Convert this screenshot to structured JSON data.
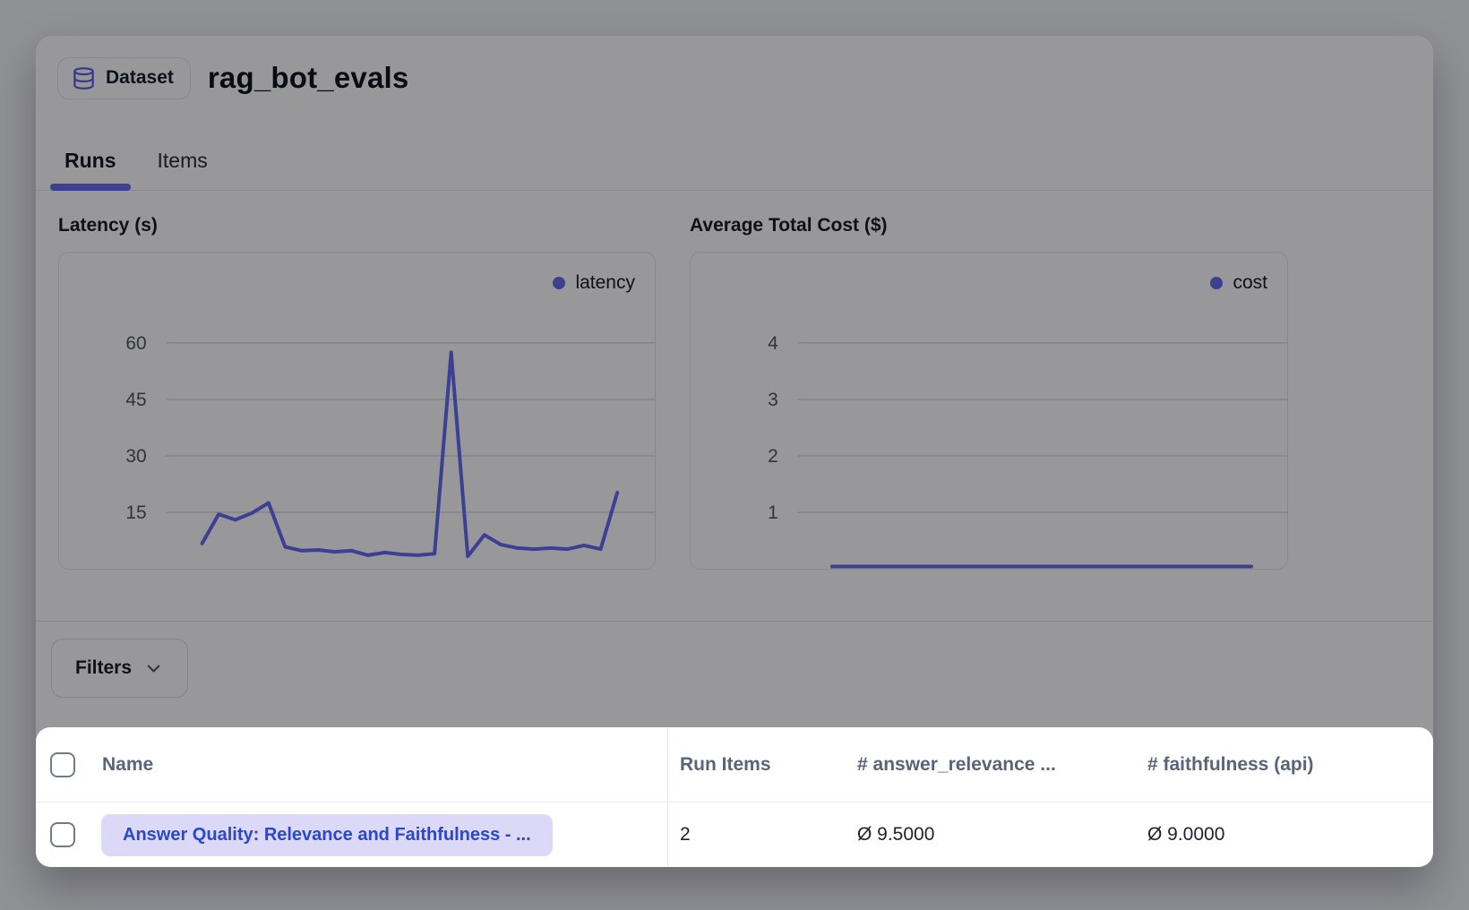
{
  "header": {
    "badge_label": "Dataset",
    "title": "rag_bot_evals"
  },
  "tabs": {
    "runs": {
      "label": "Runs",
      "active": true
    },
    "items": {
      "label": "Items",
      "active": false
    }
  },
  "filters": {
    "button_label": "Filters"
  },
  "chart_data": [
    {
      "type": "line",
      "title": "Latency (s)",
      "xlabel": "",
      "ylabel": "seconds",
      "legend": [
        "latency"
      ],
      "legend_position": "top-right",
      "grid": true,
      "ylim": [
        0,
        84
      ],
      "yticks": [
        15,
        30,
        45,
        60
      ],
      "x_start_frac": 0.24,
      "x_end_frac": 0.937,
      "series": [
        {
          "name": "latency",
          "values": [
            6.7,
            14.5,
            13,
            14.8,
            17.5,
            5.8,
            4.8,
            5.0,
            4.5,
            4.8,
            3.6,
            4.3,
            3.8,
            3.6,
            4.0,
            57.5,
            3.3,
            9.0,
            6.4,
            5.5,
            5.2,
            5.5,
            5.2,
            6.2,
            5.2,
            20.2
          ]
        }
      ],
      "color": "#6366f1"
    },
    {
      "type": "line",
      "title": "Average Total Cost ($)",
      "xlabel": "",
      "ylabel": "dollars",
      "legend": [
        "cost"
      ],
      "legend_position": "top-right",
      "grid": true,
      "ylim": [
        0,
        5.6
      ],
      "yticks": [
        1,
        2,
        3,
        4
      ],
      "x_start_frac": 0.237,
      "x_end_frac": 0.94,
      "series": [
        {
          "name": "cost",
          "values": [
            0.02,
            0.02,
            0.02,
            0.02,
            0.02,
            0.02,
            0.02,
            0.02,
            0.02,
            0.02,
            0.02,
            0.02,
            0.02,
            0.02,
            0.02,
            0.02,
            0.02,
            0.02,
            0.02,
            0.02,
            0.02,
            0.02,
            0.02,
            0.02,
            0.02,
            0.02
          ]
        }
      ],
      "color": "#6366f1"
    }
  ],
  "table": {
    "columns": {
      "name": "Name",
      "run_items": "Run Items",
      "answer_relevance": "# answer_relevance ...",
      "faithfulness": "# faithfulness (api)"
    },
    "rows": [
      {
        "name": "Answer Quality: Relevance and Faithfulness - ...",
        "run_items": "2",
        "answer_relevance": "Ø 9.5000",
        "faithfulness": "Ø 9.0000"
      }
    ]
  },
  "colors": {
    "accent": "#6366f1",
    "pill_bg": "#dcd8f8",
    "pill_text": "#2947cf",
    "gridline": "#d8dadf",
    "tick_text": "#4a5160",
    "overlay": "rgba(10,10,14,0.42)"
  }
}
